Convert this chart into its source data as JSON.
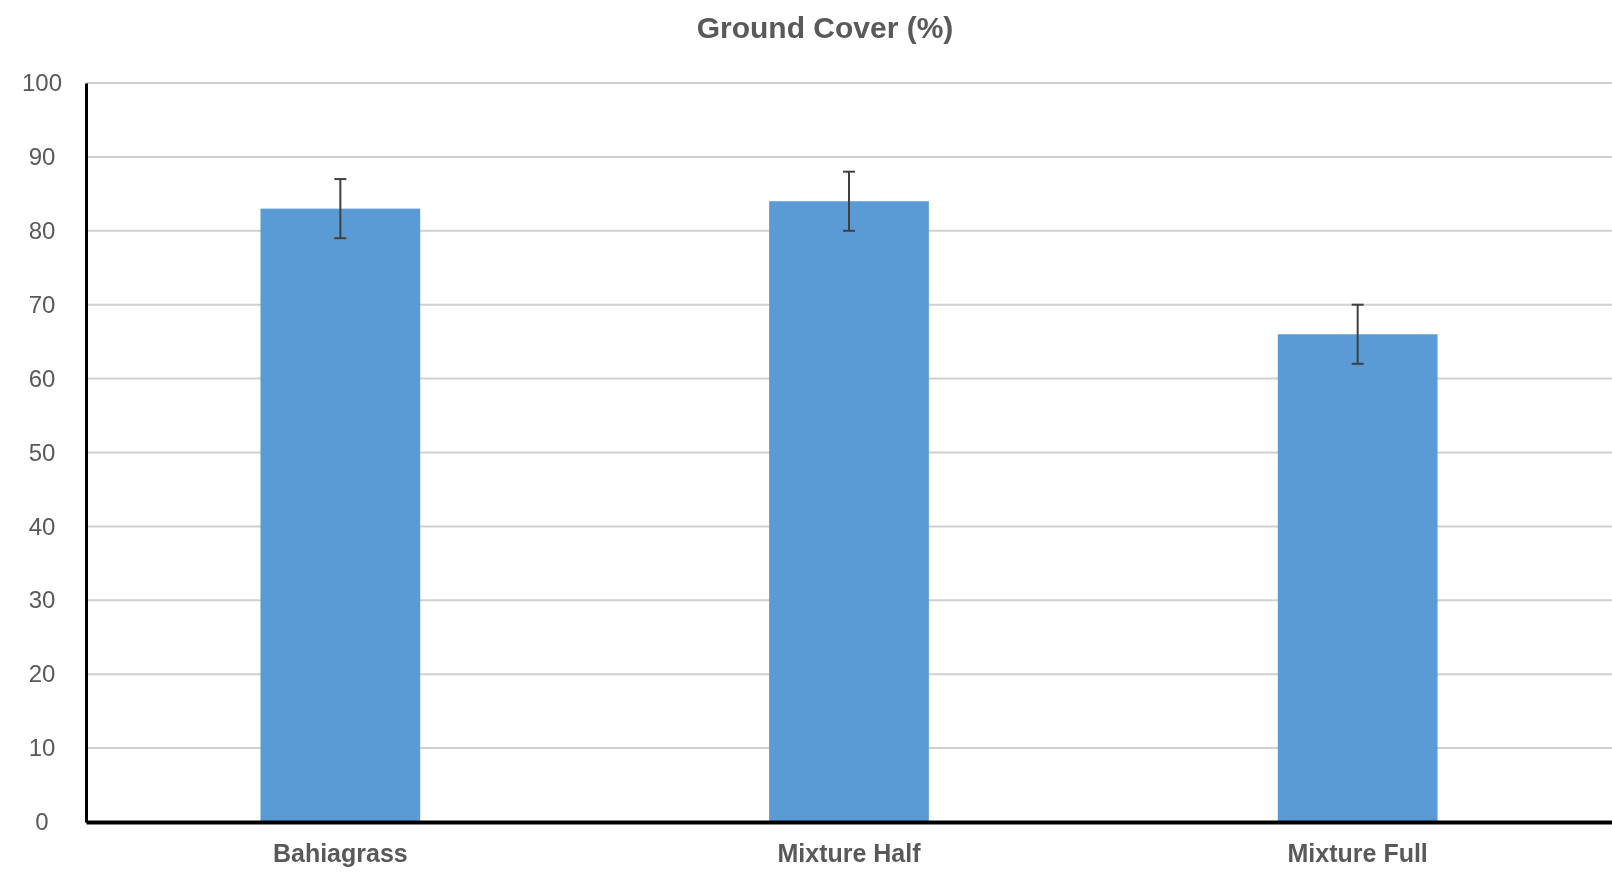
{
  "chart_data": {
    "type": "bar",
    "title": "Ground Cover (%)",
    "categories": [
      "Bahiagrass",
      "Mixture Half",
      "Mixture Full"
    ],
    "values": [
      83,
      84,
      66
    ],
    "errors": [
      4,
      4,
      4
    ],
    "color": "#5b9bd5",
    "ylim": [
      0,
      100
    ],
    "yticks": [
      0,
      10,
      20,
      30,
      40,
      50,
      60,
      70,
      80,
      90,
      100
    ],
    "grid": "y"
  }
}
